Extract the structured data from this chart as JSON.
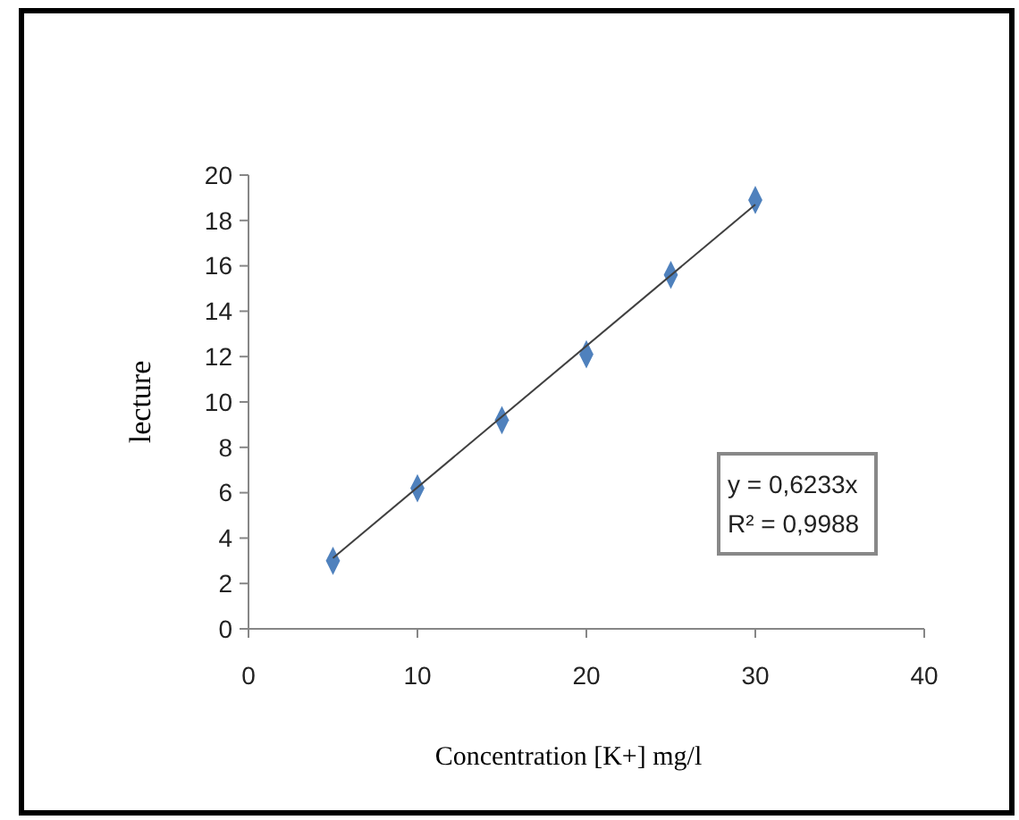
{
  "chart_data": {
    "type": "scatter",
    "xlabel": "Concentration [K+] mg/l",
    "ylabel": "lecture",
    "x": [
      5,
      10,
      15,
      20,
      25,
      30
    ],
    "series": [
      {
        "color": "#4f81bd",
        "marker": "diamond",
        "values": [
          3.0,
          6.2,
          9.2,
          12.1,
          15.6,
          18.9
        ]
      },
      {
        "type": "line",
        "color": "#404040",
        "marker": "none",
        "x": [
          5,
          30
        ],
        "values": [
          3.12,
          18.7
        ]
      }
    ],
    "xlim": [
      0,
      40
    ],
    "xticks": [
      0,
      10,
      20,
      30,
      40
    ],
    "ylim": [
      0,
      20
    ],
    "yticks": [
      0,
      2,
      4,
      6,
      8,
      10,
      12,
      14,
      16,
      18,
      20
    ],
    "grid": false,
    "annotations": [
      "y = 0,6233x",
      "R² = 0,9988"
    ]
  }
}
